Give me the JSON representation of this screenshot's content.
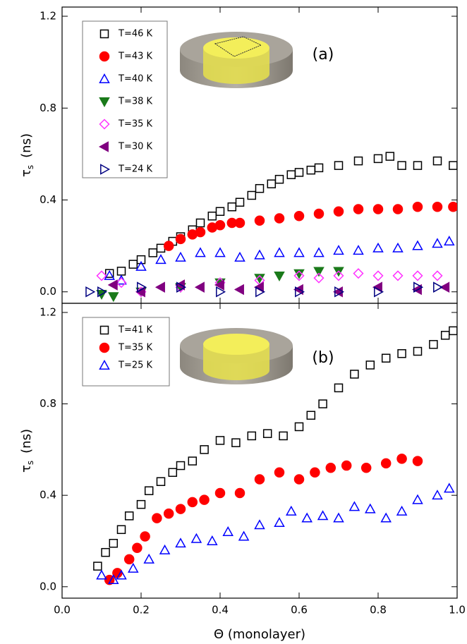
{
  "chart_data": [
    {
      "type": "scatter",
      "annotation": "(a)",
      "ylabel_symbol": "τ",
      "ylabel_subscript": "s",
      "ylabel_unit": "(ns)",
      "xlim": [
        0,
        1
      ],
      "ylim": [
        -0.05,
        1.24
      ],
      "xticks": [
        {
          "value": 0,
          "label": "0.0"
        },
        0.2,
        0.4,
        0.6,
        0.8,
        {
          "value": 1,
          "label": "1.0"
        }
      ],
      "yticks": [
        {
          "value": 0,
          "label": "0.0"
        },
        0.4,
        0.8,
        1.2
      ],
      "series": [
        {
          "name": "T=46 K",
          "color": "#000000",
          "marker": "square",
          "filled": false,
          "x": [
            0.12,
            0.15,
            0.18,
            0.2,
            0.23,
            0.25,
            0.28,
            0.3,
            0.33,
            0.35,
            0.38,
            0.4,
            0.43,
            0.45,
            0.48,
            0.5,
            0.53,
            0.55,
            0.58,
            0.6,
            0.63,
            0.65,
            0.7,
            0.75,
            0.8,
            0.83,
            0.86,
            0.9,
            0.95,
            0.99
          ],
          "values": [
            0.08,
            0.09,
            0.12,
            0.14,
            0.17,
            0.19,
            0.22,
            0.24,
            0.27,
            0.3,
            0.33,
            0.35,
            0.37,
            0.39,
            0.42,
            0.45,
            0.47,
            0.49,
            0.51,
            0.52,
            0.53,
            0.54,
            0.55,
            0.57,
            0.58,
            0.59,
            0.55,
            0.55,
            0.57,
            0.55
          ]
        },
        {
          "name": "T=43 K",
          "color": "#ff0000",
          "marker": "circle",
          "filled": true,
          "x": [
            0.27,
            0.3,
            0.33,
            0.35,
            0.38,
            0.4,
            0.43,
            0.45,
            0.5,
            0.55,
            0.6,
            0.65,
            0.7,
            0.75,
            0.8,
            0.85,
            0.9,
            0.95,
            0.99
          ],
          "values": [
            0.2,
            0.23,
            0.25,
            0.26,
            0.28,
            0.29,
            0.3,
            0.3,
            0.31,
            0.32,
            0.33,
            0.34,
            0.35,
            0.36,
            0.36,
            0.36,
            0.37,
            0.37,
            0.37
          ]
        },
        {
          "name": "T=40 K",
          "color": "#0000ff",
          "marker": "triangle-up",
          "filled": false,
          "x": [
            0.12,
            0.15,
            0.2,
            0.25,
            0.3,
            0.35,
            0.4,
            0.45,
            0.5,
            0.55,
            0.6,
            0.65,
            0.7,
            0.75,
            0.8,
            0.85,
            0.9,
            0.95,
            0.98
          ],
          "values": [
            0.07,
            0.05,
            0.11,
            0.14,
            0.15,
            0.17,
            0.17,
            0.15,
            0.16,
            0.17,
            0.17,
            0.17,
            0.18,
            0.18,
            0.19,
            0.19,
            0.2,
            0.21,
            0.22
          ]
        },
        {
          "name": "T=38 K",
          "color": "#1a7a1a",
          "marker": "triangle-down",
          "filled": true,
          "x": [
            0.1,
            0.13,
            0.2,
            0.3,
            0.4,
            0.5,
            0.55,
            0.6,
            0.65,
            0.7
          ],
          "values": [
            -0.01,
            -0.02,
            0.0,
            0.02,
            0.04,
            0.06,
            0.07,
            0.08,
            0.09,
            0.09
          ]
        },
        {
          "name": "T=35 K",
          "color": "#ff33ff",
          "marker": "diamond",
          "filled": false,
          "x": [
            0.1,
            0.15,
            0.2,
            0.3,
            0.4,
            0.5,
            0.6,
            0.65,
            0.7,
            0.75,
            0.8,
            0.85,
            0.9,
            0.95
          ],
          "values": [
            0.07,
            0.04,
            0.0,
            0.02,
            0.04,
            0.05,
            0.07,
            0.06,
            0.07,
            0.08,
            0.07,
            0.07,
            0.07,
            0.07
          ]
        },
        {
          "name": "T=30 K",
          "color": "#800080",
          "marker": "triangle-left",
          "filled": true,
          "x": [
            0.13,
            0.2,
            0.25,
            0.3,
            0.35,
            0.4,
            0.45,
            0.5,
            0.6,
            0.7,
            0.8,
            0.9,
            0.97
          ],
          "values": [
            0.03,
            0.0,
            0.02,
            0.03,
            0.02,
            0.03,
            0.01,
            0.02,
            0.01,
            0.0,
            0.02,
            0.01,
            0.02
          ]
        },
        {
          "name": "T=24 K",
          "color": "#000080",
          "marker": "triangle-right",
          "filled": false,
          "x": [
            0.07,
            0.1,
            0.2,
            0.3,
            0.4,
            0.5,
            0.6,
            0.7,
            0.8,
            0.9,
            0.95
          ],
          "values": [
            0.0,
            0.0,
            0.02,
            0.02,
            0.0,
            0.0,
            0.0,
            0.0,
            0.0,
            0.02,
            0.02
          ]
        }
      ]
    },
    {
      "type": "scatter",
      "annotation": "(b)",
      "ylabel_symbol": "τ",
      "ylabel_subscript": "s",
      "ylabel_unit": "(ns)",
      "xlabel": "Θ  (monolayer)",
      "xlim": [
        0,
        1
      ],
      "ylim": [
        -0.05,
        1.24
      ],
      "xticks": [
        {
          "value": 0,
          "label": "0.0"
        },
        0.2,
        0.4,
        0.6,
        0.8,
        {
          "value": 1,
          "label": "1.0"
        }
      ],
      "yticks": [
        {
          "value": 0,
          "label": "0.0"
        },
        0.4,
        0.8,
        1.2
      ],
      "series": [
        {
          "name": "T=41 K",
          "color": "#000000",
          "marker": "square",
          "filled": false,
          "x": [
            0.09,
            0.11,
            0.13,
            0.15,
            0.17,
            0.2,
            0.22,
            0.25,
            0.28,
            0.3,
            0.33,
            0.36,
            0.4,
            0.44,
            0.48,
            0.52,
            0.56,
            0.6,
            0.63,
            0.66,
            0.7,
            0.74,
            0.78,
            0.82,
            0.86,
            0.9,
            0.94,
            0.97,
            0.99
          ],
          "values": [
            0.09,
            0.15,
            0.19,
            0.25,
            0.31,
            0.36,
            0.42,
            0.46,
            0.5,
            0.53,
            0.55,
            0.6,
            0.64,
            0.63,
            0.66,
            0.67,
            0.66,
            0.7,
            0.75,
            0.8,
            0.87,
            0.93,
            0.97,
            1.0,
            1.02,
            1.03,
            1.06,
            1.1,
            1.12
          ]
        },
        {
          "name": "T=35 K",
          "color": "#ff0000",
          "marker": "circle",
          "filled": true,
          "x": [
            0.12,
            0.14,
            0.17,
            0.19,
            0.21,
            0.24,
            0.27,
            0.3,
            0.33,
            0.36,
            0.4,
            0.45,
            0.5,
            0.55,
            0.6,
            0.64,
            0.68,
            0.72,
            0.77,
            0.82,
            0.86,
            0.9
          ],
          "values": [
            0.03,
            0.06,
            0.12,
            0.17,
            0.22,
            0.3,
            0.32,
            0.34,
            0.37,
            0.38,
            0.41,
            0.41,
            0.47,
            0.5,
            0.47,
            0.5,
            0.52,
            0.53,
            0.52,
            0.54,
            0.56,
            0.55
          ]
        },
        {
          "name": "T=25 K",
          "color": "#0000ff",
          "marker": "triangle-up",
          "filled": false,
          "x": [
            0.1,
            0.13,
            0.15,
            0.18,
            0.22,
            0.26,
            0.3,
            0.34,
            0.38,
            0.42,
            0.46,
            0.5,
            0.55,
            0.58,
            0.62,
            0.66,
            0.7,
            0.74,
            0.78,
            0.82,
            0.86,
            0.9,
            0.95,
            0.98
          ],
          "values": [
            0.05,
            0.03,
            0.05,
            0.08,
            0.12,
            0.16,
            0.19,
            0.21,
            0.2,
            0.24,
            0.22,
            0.27,
            0.28,
            0.33,
            0.3,
            0.31,
            0.3,
            0.35,
            0.34,
            0.3,
            0.33,
            0.38,
            0.4,
            0.43
          ]
        }
      ]
    }
  ]
}
